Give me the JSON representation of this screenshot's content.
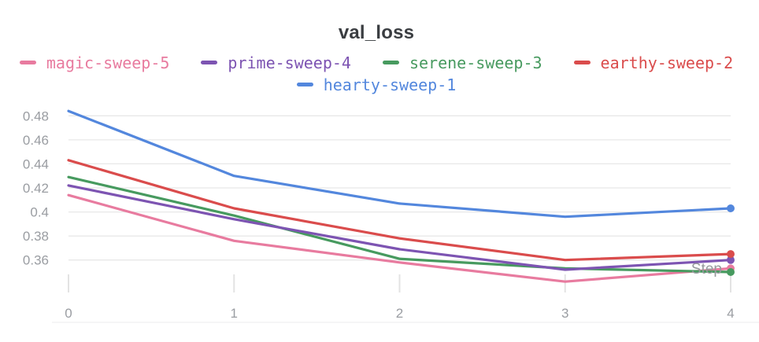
{
  "chart_data": {
    "type": "line",
    "title": "val_loss",
    "xlabel": "Step",
    "x": [
      0,
      1,
      2,
      3,
      4
    ],
    "x_tick_labels": [
      "0",
      "1",
      "2",
      "3",
      "4"
    ],
    "y_tick_values": [
      0.48,
      0.46,
      0.44,
      0.42,
      0.4,
      0.38,
      0.36
    ],
    "y_tick_labels": [
      "0.48",
      "0.46",
      "0.44",
      "0.42",
      "0.4",
      "0.38",
      "0.36"
    ],
    "ylim": [
      0.333,
      0.49
    ],
    "grid": "horizontal",
    "legend_position": "top",
    "series": [
      {
        "name": "magic-sweep-5",
        "color": "#E87B9F",
        "values": [
          0.414,
          0.376,
          0.358,
          0.342,
          0.353
        ]
      },
      {
        "name": "prime-sweep-4",
        "color": "#7D54B2",
        "values": [
          0.422,
          0.394,
          0.369,
          0.352,
          0.36
        ]
      },
      {
        "name": "serene-sweep-3",
        "color": "#479A5F",
        "values": [
          0.429,
          0.397,
          0.361,
          0.353,
          0.35
        ]
      },
      {
        "name": "earthy-sweep-2",
        "color": "#DA4C4C",
        "values": [
          0.443,
          0.403,
          0.378,
          0.36,
          0.365
        ]
      },
      {
        "name": "hearty-sweep-1",
        "color": "#5387DD",
        "values": [
          0.484,
          0.43,
          0.407,
          0.396,
          0.403
        ]
      }
    ],
    "colors": {
      "axis_label": "#9a9da2",
      "axis_title": "#96999d",
      "gridline": "#e8e8e8",
      "tick": "#e3e3e3",
      "title_text": "#3a3d41",
      "background": "#ffffff"
    }
  }
}
